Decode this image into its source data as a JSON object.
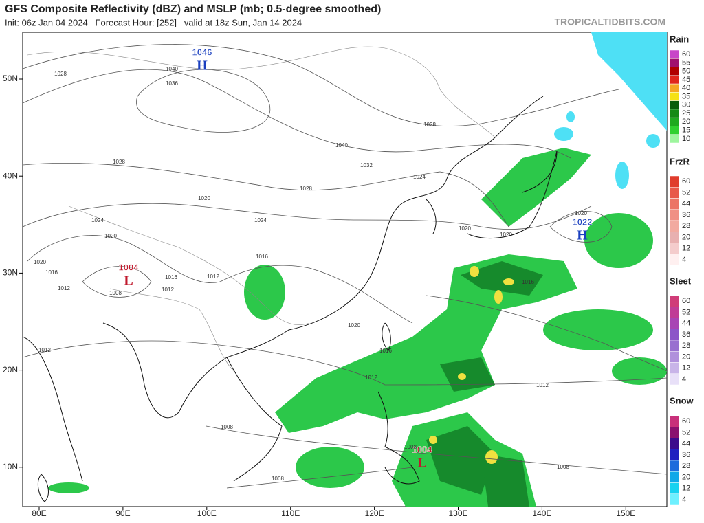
{
  "header": {
    "title": "GFS Composite Reflectivity (dBZ) and MSLP (mb; 0.5-degree smoothed)",
    "subtitle": "Init: 06z Jan 04 2024   Forecast Hour: [252]   valid at 18z Sun, Jan 14 2024",
    "site": "TROPICALTIDBITS.COM"
  },
  "axes": {
    "lat_labels": [
      "50N",
      "40N",
      "30N",
      "20N",
      "10N"
    ],
    "lon_labels": [
      "80E",
      "90E",
      "100E",
      "110E",
      "120E",
      "130E",
      "140E",
      "150E"
    ]
  },
  "pressure_centers": [
    {
      "value": "1046",
      "symbol": "H",
      "color": "#1a3fbf"
    },
    {
      "value": "1004",
      "symbol": "L",
      "color": "#c0182c"
    },
    {
      "value": "1022",
      "symbol": "H",
      "color": "#1a3fbf"
    },
    {
      "value": "1004",
      "symbol": "L",
      "color": "#c0182c"
    }
  ],
  "isobar_labels": [
    "1028",
    "1040",
    "1036",
    "1028",
    "1040",
    "1028",
    "1032",
    "1024",
    "1028",
    "1020",
    "1024",
    "1024",
    "1020",
    "1020",
    "1020",
    "1020",
    "1016",
    "1020",
    "1016",
    "1012",
    "1016",
    "1012",
    "1012",
    "1008",
    "1016",
    "1020",
    "1016",
    "1012",
    "1012",
    "1012",
    "1008",
    "1008",
    "1008",
    "1008"
  ],
  "legend": [
    {
      "title": "Rain",
      "levels": [
        60,
        55,
        50,
        45,
        40,
        35,
        30,
        25,
        20,
        15,
        10
      ],
      "colors": [
        "#c846c8",
        "#a0106e",
        "#b00000",
        "#e0261c",
        "#f5a623",
        "#f5e216",
        "#0a5c0a",
        "#158a15",
        "#1faa1f",
        "#30d030",
        "#9ef59e"
      ]
    },
    {
      "title": "FrzR",
      "levels": [
        60,
        52,
        44,
        36,
        28,
        20,
        12,
        4
      ],
      "colors": [
        "#e03c2c",
        "#e8584a",
        "#ec7466",
        "#f09084",
        "#f2aaa0",
        "#e8b0b0",
        "#f4cccc",
        "#fff0f0"
      ]
    },
    {
      "title": "Sleet",
      "levels": [
        60,
        52,
        44,
        36,
        28,
        20,
        12,
        4
      ],
      "colors": [
        "#d03c78",
        "#c03c96",
        "#a844b4",
        "#8c54c8",
        "#9870d0",
        "#b090dc",
        "#c8b4e8",
        "#e8e0f8"
      ]
    },
    {
      "title": "Snow",
      "levels": [
        60,
        52,
        44,
        36,
        28,
        20,
        12,
        4
      ],
      "colors": [
        "#c8307a",
        "#8a106e",
        "#3c0a8c",
        "#2020c0",
        "#1e6cdc",
        "#10a8e8",
        "#18d2f0",
        "#6ef0ff"
      ]
    }
  ]
}
